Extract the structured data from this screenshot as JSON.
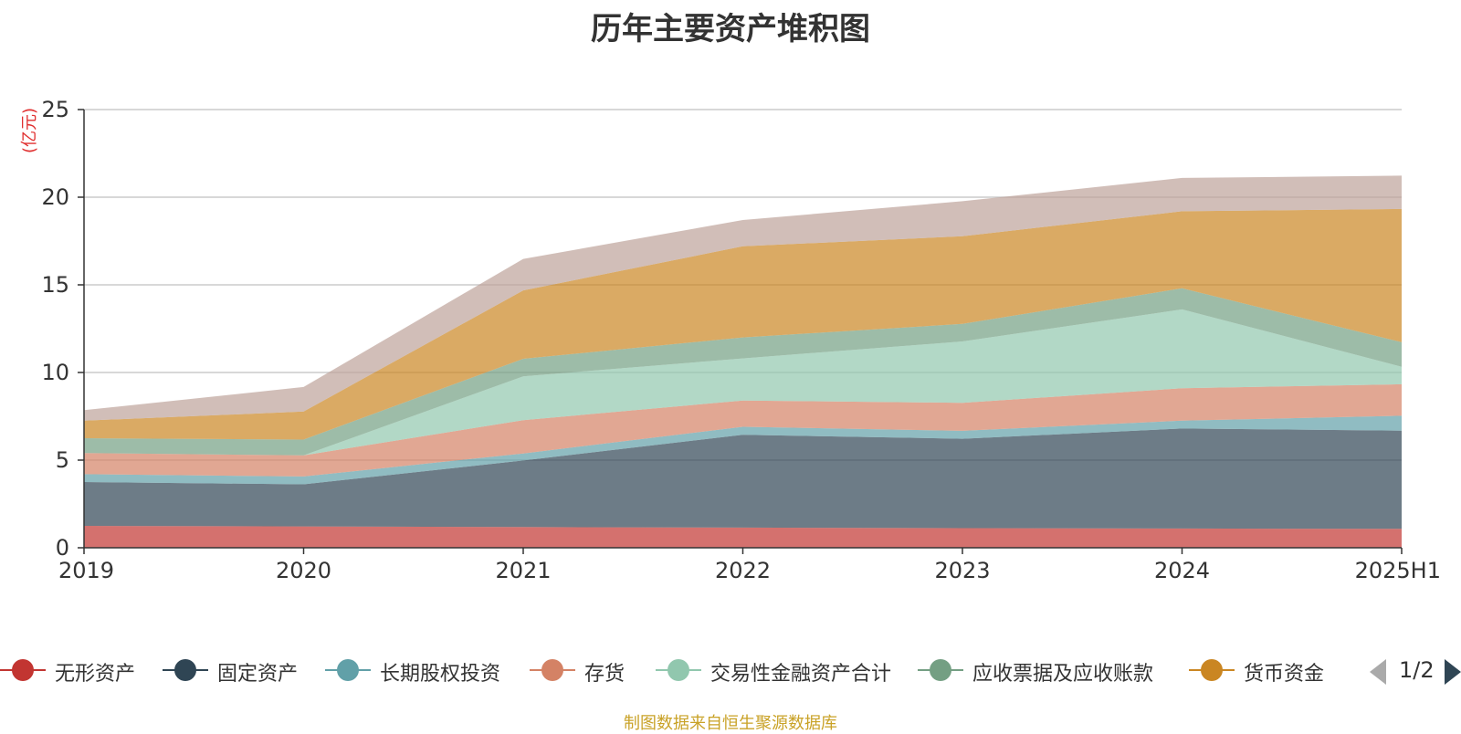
{
  "chart_data": {
    "type": "area",
    "stacked": true,
    "title": "历年主要资产堆积图",
    "ylabel": "(亿元)",
    "ylim": [
      0,
      25
    ],
    "yticks": [
      0,
      5,
      10,
      15,
      20,
      25
    ],
    "categories": [
      "2019",
      "2020",
      "2021",
      "2022",
      "2023",
      "2024",
      "2025H1"
    ],
    "grid": true,
    "legend_position": "bottom",
    "series": [
      {
        "name": "无形资产",
        "color": "#c23531",
        "values": [
          1.25,
          1.22,
          1.18,
          1.15,
          1.12,
          1.1,
          1.08
        ]
      },
      {
        "name": "固定资产",
        "color": "#2f4554",
        "values": [
          2.5,
          2.4,
          3.8,
          5.3,
          5.1,
          5.7,
          5.6
        ]
      },
      {
        "name": "长期股权投资",
        "color": "#61a0a8",
        "values": [
          0.45,
          0.45,
          0.4,
          0.45,
          0.45,
          0.45,
          0.85
        ]
      },
      {
        "name": "存货",
        "color": "#d48265",
        "values": [
          1.2,
          1.2,
          1.9,
          1.5,
          1.6,
          1.85,
          1.8
        ]
      },
      {
        "name": "交易性金融资产合计",
        "color": "#91c7ae",
        "values": [
          0,
          0,
          2.5,
          2.4,
          3.5,
          4.5,
          1.0
        ]
      },
      {
        "name": "应收票据及应收账款",
        "color": "#749f83",
        "values": [
          0.85,
          0.9,
          1.0,
          1.2,
          1.0,
          1.2,
          1.4
        ]
      },
      {
        "name": "货币资金",
        "color": "#ca8622",
        "values": [
          1.0,
          1.6,
          3.9,
          5.2,
          5.0,
          4.4,
          7.6
        ]
      },
      {
        "name": "",
        "color": "#bda29a",
        "values": [
          0.6,
          1.4,
          1.8,
          1.5,
          2.0,
          1.9,
          1.9
        ]
      }
    ]
  },
  "legend": {
    "page_text": "1/2"
  },
  "source_note": "制图数据来自恒生聚源数据库"
}
